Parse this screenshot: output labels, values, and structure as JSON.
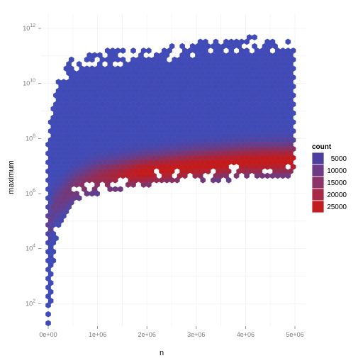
{
  "chart_data": {
    "type": "heatmap",
    "subtype": "hexbin",
    "title": "",
    "xlabel": "n",
    "ylabel": "maximum",
    "x_scale": "linear",
    "y_scale": "log10",
    "xlim": [
      0,
      5000000
    ],
    "ylim_log10": [
      0,
      12
    ],
    "x_ticks": [
      0,
      1000000,
      2000000,
      3000000,
      4000000,
      5000000
    ],
    "x_tick_labels": [
      "0e+00",
      "1e+06",
      "2e+06",
      "3e+06",
      "4e+06",
      "5e+06"
    ],
    "y_ticks_log10": [
      2,
      4,
      6,
      8,
      10,
      12
    ],
    "y_tick_base": "10",
    "y_tick_exponents": [
      "2",
      "4",
      "6",
      "8",
      "10",
      "12"
    ],
    "grid": true,
    "background": "#ffffff",
    "gridline_color": "#f2f2f2",
    "fill_scale": {
      "name": "count",
      "low_color": "#3f4bb8",
      "high_color": "#c41a1a",
      "breaks": [
        5000,
        10000,
        15000,
        20000,
        25000
      ],
      "break_labels": [
        "5000",
        "10000",
        "15000",
        "20000",
        "25000"
      ],
      "legend_swatch_colors": [
        "#4c3fa0",
        "#6f3a86",
        "#8c336a",
        "#a72b48",
        "#c11e22"
      ],
      "max": 28000
    },
    "envelope": [
      {
        "n": 0,
        "max_log10_max": 8.0,
        "min_log10_min": 0.6
      },
      {
        "n": 120000,
        "max_log10_max": 9.5,
        "min_log10_min": 4.0
      },
      {
        "n": 200000,
        "max_log10_max": 10.3,
        "min_log10_min": 4.5
      },
      {
        "n": 500000,
        "max_log10_max": 11.0,
        "min_log10_min": 5.7
      },
      {
        "n": 1000000,
        "max_log10_max": 11.2,
        "min_log10_min": 6.0
      },
      {
        "n": 2000000,
        "max_log10_max": 11.2,
        "min_log10_min": 6.3
      },
      {
        "n": 3000000,
        "max_log10_max": 11.5,
        "min_log10_min": 6.4
      },
      {
        "n": 4000000,
        "max_log10_max": 11.7,
        "min_log10_min": 6.5
      },
      {
        "n": 5000000,
        "max_log10_max": 11.6,
        "min_log10_min": 6.6
      }
    ],
    "density_ridge": [
      {
        "n": 100000,
        "log10_max": 5.5
      },
      {
        "n": 500000,
        "log10_max": 6.2
      },
      {
        "n": 1000000,
        "log10_max": 6.55
      },
      {
        "n": 2000000,
        "log10_max": 6.8
      },
      {
        "n": 3000000,
        "log10_max": 7.0
      },
      {
        "n": 4000000,
        "log10_max": 7.15
      },
      {
        "n": 5000000,
        "log10_max": 7.2
      }
    ]
  }
}
